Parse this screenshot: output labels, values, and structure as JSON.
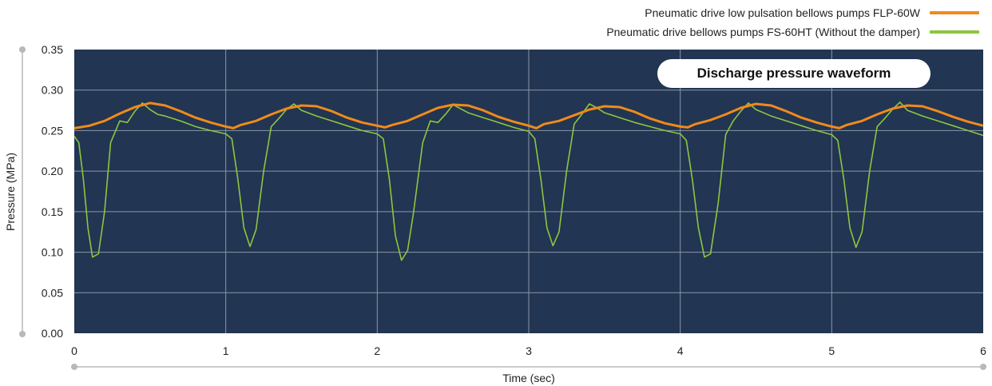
{
  "legend": {
    "items": [
      {
        "label": "Pneumatic drive low pulsation bellows pumps FLP-60W",
        "color": "#f08a1c"
      },
      {
        "label": "Pneumatic drive bellows pumps FS-60HT (Without the damper)",
        "color": "#8cc63f"
      }
    ]
  },
  "annotation": "Discharge pressure waveform",
  "colors": {
    "plot_background": "#223552",
    "grid": "#8a96a8"
  },
  "chart_data": {
    "type": "line",
    "title": "",
    "xlabel": "Time (sec)",
    "ylabel": "Pressure (MPa)",
    "xlim": [
      0,
      6
    ],
    "ylim": [
      0,
      0.35
    ],
    "xticks": [
      "0",
      "1",
      "2",
      "3",
      "4",
      "5",
      "6"
    ],
    "yticks": [
      "0.00",
      "0.05",
      "0.10",
      "0.15",
      "0.20",
      "0.25",
      "0.30",
      "0.35"
    ],
    "grid": true,
    "legend_position": "top-right",
    "series": [
      {
        "name": "Pneumatic drive low pulsation bellows pumps FLP-60W",
        "color": "#f08a1c",
        "x": [
          0,
          0.1,
          0.2,
          0.3,
          0.4,
          0.5,
          0.6,
          0.7,
          0.8,
          0.9,
          1.0,
          1.05,
          1.1,
          1.2,
          1.3,
          1.4,
          1.5,
          1.6,
          1.7,
          1.8,
          1.9,
          2.0,
          2.05,
          2.1,
          2.2,
          2.3,
          2.4,
          2.5,
          2.6,
          2.7,
          2.8,
          2.9,
          3.0,
          3.05,
          3.1,
          3.2,
          3.3,
          3.4,
          3.5,
          3.6,
          3.7,
          3.8,
          3.9,
          4.0,
          4.05,
          4.1,
          4.2,
          4.3,
          4.4,
          4.5,
          4.6,
          4.7,
          4.8,
          4.9,
          5.0,
          5.05,
          5.1,
          5.2,
          5.3,
          5.4,
          5.5,
          5.6,
          5.7,
          5.8,
          5.9,
          6.0
        ],
        "values": [
          0.253,
          0.256,
          0.262,
          0.271,
          0.279,
          0.284,
          0.281,
          0.274,
          0.266,
          0.26,
          0.255,
          0.253,
          0.257,
          0.262,
          0.27,
          0.277,
          0.281,
          0.28,
          0.274,
          0.266,
          0.26,
          0.256,
          0.254,
          0.257,
          0.262,
          0.27,
          0.278,
          0.282,
          0.281,
          0.275,
          0.267,
          0.261,
          0.256,
          0.253,
          0.258,
          0.262,
          0.269,
          0.276,
          0.28,
          0.279,
          0.273,
          0.265,
          0.259,
          0.255,
          0.254,
          0.258,
          0.263,
          0.27,
          0.278,
          0.283,
          0.281,
          0.274,
          0.266,
          0.26,
          0.255,
          0.253,
          0.257,
          0.262,
          0.27,
          0.277,
          0.281,
          0.28,
          0.274,
          0.267,
          0.261,
          0.256
        ]
      },
      {
        "name": "Pneumatic drive bellows pumps FS-60HT (Without the damper)",
        "color": "#8cc63f",
        "x": [
          0,
          0.03,
          0.06,
          0.09,
          0.12,
          0.16,
          0.2,
          0.24,
          0.3,
          0.35,
          0.4,
          0.45,
          0.5,
          0.55,
          0.6,
          0.7,
          0.8,
          0.9,
          1.0,
          1.04,
          1.08,
          1.12,
          1.16,
          1.2,
          1.25,
          1.3,
          1.35,
          1.4,
          1.45,
          1.5,
          1.6,
          1.7,
          1.8,
          1.9,
          2.0,
          2.04,
          2.08,
          2.12,
          2.16,
          2.2,
          2.24,
          2.3,
          2.35,
          2.4,
          2.45,
          2.5,
          2.6,
          2.7,
          2.8,
          2.9,
          3.0,
          3.04,
          3.08,
          3.12,
          3.16,
          3.2,
          3.25,
          3.3,
          3.35,
          3.4,
          3.45,
          3.5,
          3.6,
          3.7,
          3.8,
          3.9,
          4.0,
          4.04,
          4.08,
          4.12,
          4.16,
          4.2,
          4.25,
          4.3,
          4.35,
          4.4,
          4.45,
          4.5,
          4.6,
          4.7,
          4.8,
          4.9,
          5.0,
          5.04,
          5.08,
          5.12,
          5.16,
          5.2,
          5.25,
          5.3,
          5.35,
          5.4,
          5.45,
          5.5,
          5.6,
          5.7,
          5.8,
          5.9,
          6.0
        ],
        "values": [
          0.243,
          0.235,
          0.19,
          0.13,
          0.094,
          0.098,
          0.15,
          0.235,
          0.262,
          0.26,
          0.274,
          0.284,
          0.276,
          0.27,
          0.268,
          0.262,
          0.255,
          0.25,
          0.246,
          0.24,
          0.19,
          0.13,
          0.107,
          0.128,
          0.2,
          0.255,
          0.265,
          0.276,
          0.283,
          0.275,
          0.268,
          0.262,
          0.256,
          0.25,
          0.246,
          0.24,
          0.19,
          0.12,
          0.09,
          0.102,
          0.15,
          0.235,
          0.262,
          0.26,
          0.27,
          0.282,
          0.272,
          0.266,
          0.26,
          0.254,
          0.249,
          0.24,
          0.19,
          0.13,
          0.108,
          0.125,
          0.2,
          0.258,
          0.27,
          0.283,
          0.278,
          0.272,
          0.266,
          0.26,
          0.255,
          0.25,
          0.246,
          0.238,
          0.19,
          0.13,
          0.094,
          0.098,
          0.16,
          0.245,
          0.262,
          0.274,
          0.284,
          0.276,
          0.268,
          0.262,
          0.256,
          0.25,
          0.245,
          0.238,
          0.19,
          0.13,
          0.106,
          0.125,
          0.2,
          0.255,
          0.265,
          0.276,
          0.285,
          0.275,
          0.268,
          0.262,
          0.256,
          0.25,
          0.244
        ]
      }
    ]
  }
}
